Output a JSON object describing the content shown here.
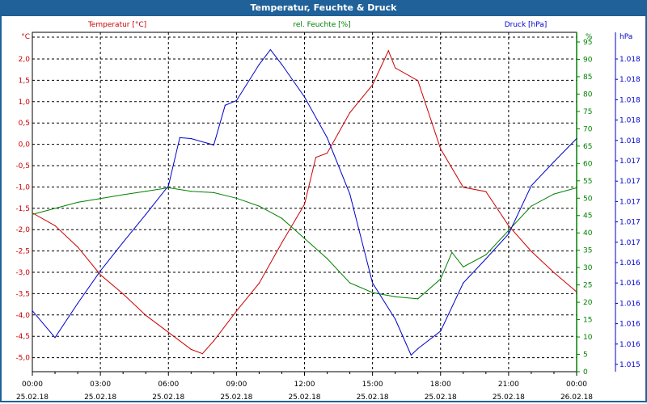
{
  "window": {
    "title": "Temperatur, Feuchte & Druck"
  },
  "chart_data": {
    "type": "line",
    "title": "Temperatur, Feuchte & Druck",
    "grid": true,
    "x_unit": "hours since 25.02.18 00:00",
    "xlim": [
      0,
      24
    ],
    "x_ticks": [
      {
        "t": 0,
        "time": "00:00",
        "date": "25.02.18"
      },
      {
        "t": 3,
        "time": "03:00",
        "date": "25.02.18"
      },
      {
        "t": 6,
        "time": "06:00",
        "date": "25.02.18"
      },
      {
        "t": 9,
        "time": "09:00",
        "date": "25.02.18"
      },
      {
        "t": 12,
        "time": "12:00",
        "date": "25.02.18"
      },
      {
        "t": 15,
        "time": "15:00",
        "date": "25.02.18"
      },
      {
        "t": 18,
        "time": "18:00",
        "date": "25.02.18"
      },
      {
        "t": 21,
        "time": "21:00",
        "date": "25.02.18"
      },
      {
        "t": 24,
        "time": "00:00",
        "date": "26.02.18"
      }
    ],
    "axes": {
      "temperature": {
        "label": "Temperatur [°C]",
        "unit": "°C",
        "color": "#cc0000",
        "ylim": [
          -5.5,
          2.5
        ],
        "ticks": [
          "2,0",
          "1,5",
          "1,0",
          "0,5",
          "0,0",
          "-0,5",
          "-1,0",
          "-1,5",
          "-2,0",
          "-2,5",
          "-3,0",
          "-3,5",
          "-4,0",
          "-4,5",
          "-5,0"
        ]
      },
      "humidity": {
        "label": "rel. Feuchte [%]",
        "unit": "%",
        "color": "#008000",
        "ylim": [
          0,
          95
        ],
        "ticks": [
          "95",
          "90",
          "85",
          "80",
          "75",
          "70",
          "65",
          "60",
          "55",
          "50",
          "45",
          "40",
          "35",
          "30",
          "25",
          "20",
          "15",
          "10",
          "5",
          "0"
        ]
      },
      "pressure": {
        "label": "Druck [hPa]",
        "unit": "hPa",
        "color": "#0000cc",
        "ylim": [
          1015.05,
          1018.35
        ],
        "ticks": [
          "1.018",
          "1.018",
          "1.018",
          "1.018",
          "1.018",
          "1.017",
          "1.017",
          "1.017",
          "1.017",
          "1.017",
          "1.016",
          "1.016",
          "1.016",
          "1.016",
          "1.016",
          "1.015"
        ]
      }
    },
    "series": [
      {
        "name": "Temperatur",
        "axis": "temperature",
        "color": "#cc0000",
        "x": [
          0,
          1,
          2,
          3,
          4,
          5,
          6,
          7,
          7.5,
          8,
          9,
          10,
          11,
          12,
          12.5,
          13,
          14,
          15,
          15.7,
          16,
          17,
          18,
          19,
          20,
          21,
          22,
          23,
          24
        ],
        "y": [
          -1.6,
          -1.9,
          -2.4,
          -3.05,
          -3.5,
          -4.0,
          -4.4,
          -4.8,
          -4.9,
          -4.6,
          -3.9,
          -3.25,
          -2.3,
          -1.4,
          -0.3,
          -0.2,
          0.75,
          1.4,
          2.2,
          1.8,
          1.5,
          -0.1,
          -1.0,
          -1.1,
          -1.9,
          -2.5,
          -3.0,
          -3.45
        ]
      },
      {
        "name": "rel. Feuchte",
        "axis": "humidity",
        "color": "#008000",
        "x": [
          0,
          2,
          3,
          4,
          5,
          6,
          7,
          8,
          9,
          10,
          11,
          12,
          13,
          14,
          15,
          16,
          17,
          18,
          18.5,
          19,
          20,
          21,
          22,
          23,
          24
        ],
        "y": [
          45.3,
          48.8,
          49.9,
          51,
          52,
          53,
          52,
          51.6,
          50,
          47.7,
          44.2,
          38.4,
          32.6,
          25.6,
          22.8,
          21.6,
          21,
          26.7,
          34.4,
          30.2,
          33.7,
          40.7,
          47.7,
          51.2,
          53
        ]
      },
      {
        "name": "Druck",
        "axis": "pressure",
        "color": "#0000cc",
        "x": [
          0,
          1,
          2,
          3,
          4,
          5,
          6,
          6.5,
          7,
          8,
          8.5,
          9,
          10,
          10.5,
          11,
          12,
          13,
          14,
          15,
          16,
          16.7,
          17,
          18,
          19,
          20,
          21,
          22,
          23,
          24
        ],
        "y": [
          1015.63,
          1015.34,
          1015.71,
          1016.06,
          1016.37,
          1016.67,
          1016.98,
          1017.5,
          1017.49,
          1017.42,
          1017.85,
          1017.9,
          1018.29,
          1018.45,
          1018.29,
          1017.94,
          1017.5,
          1016.89,
          1015.93,
          1015.54,
          1015.15,
          1015.22,
          1015.41,
          1015.93,
          1016.19,
          1016.46,
          1016.98,
          1017.24,
          1017.49
        ]
      }
    ]
  }
}
